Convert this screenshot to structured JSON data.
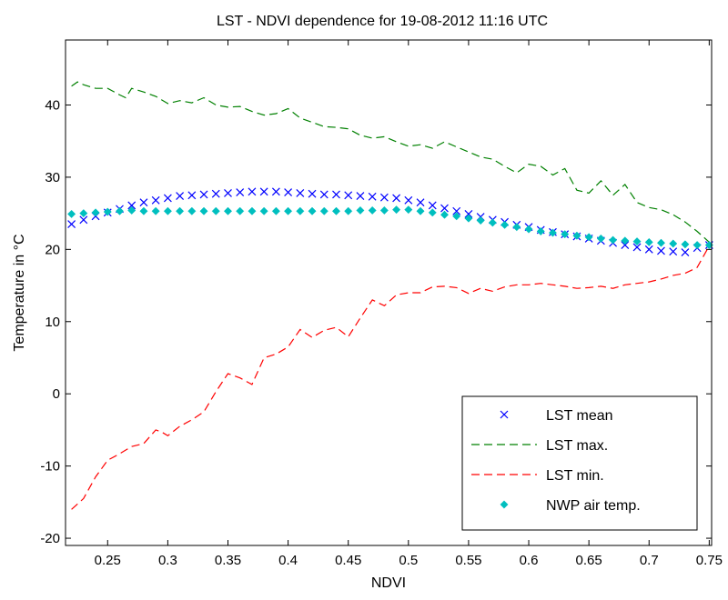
{
  "chart_data": {
    "type": "line",
    "title": "LST - NDVI dependence for 19-08-2012 11:16 UTC",
    "xlabel": "NDVI",
    "ylabel": "Temperature in °C",
    "xlim": [
      0.215,
      0.752
    ],
    "ylim": [
      -21,
      49
    ],
    "xticks": [
      0.25,
      0.3,
      0.35,
      0.4,
      0.45,
      0.5,
      0.55,
      0.6,
      0.65,
      0.7,
      0.75
    ],
    "xtick_labels": [
      "0.25",
      "0.3",
      "0.35",
      "0.4",
      "0.45",
      "0.5",
      "0.55",
      "0.6",
      "0.65",
      "0.7",
      "0.75"
    ],
    "yticks": [
      -20,
      -10,
      0,
      10,
      20,
      30,
      40
    ],
    "ytick_labels": [
      "-20",
      "-10",
      "0",
      "10",
      "20",
      "30",
      "40"
    ],
    "grid": false,
    "legend_position": "bottom-right",
    "series": [
      {
        "name": "LST mean",
        "style": "marker-x",
        "color": "#0000ff",
        "x": [
          0.22,
          0.23,
          0.24,
          0.25,
          0.26,
          0.27,
          0.28,
          0.29,
          0.3,
          0.31,
          0.32,
          0.33,
          0.34,
          0.35,
          0.36,
          0.37,
          0.38,
          0.39,
          0.4,
          0.41,
          0.42,
          0.43,
          0.44,
          0.45,
          0.46,
          0.47,
          0.48,
          0.49,
          0.5,
          0.51,
          0.52,
          0.53,
          0.54,
          0.55,
          0.56,
          0.57,
          0.58,
          0.59,
          0.6,
          0.61,
          0.62,
          0.63,
          0.64,
          0.65,
          0.66,
          0.67,
          0.68,
          0.69,
          0.7,
          0.71,
          0.72,
          0.73,
          0.74,
          0.75
        ],
        "y": [
          23.5,
          24.1,
          24.6,
          25.1,
          25.6,
          26.1,
          26.5,
          26.8,
          27.1,
          27.4,
          27.5,
          27.6,
          27.7,
          27.8,
          27.9,
          28.0,
          28.0,
          28.0,
          27.9,
          27.8,
          27.7,
          27.6,
          27.6,
          27.5,
          27.4,
          27.3,
          27.2,
          27.1,
          26.8,
          26.5,
          26.1,
          25.7,
          25.3,
          24.9,
          24.5,
          24.1,
          23.8,
          23.4,
          23.1,
          22.7,
          22.4,
          22.1,
          21.8,
          21.5,
          21.2,
          20.9,
          20.6,
          20.3,
          20.0,
          19.8,
          19.7,
          19.6,
          20.2,
          20.6
        ]
      },
      {
        "name": "LST max.",
        "style": "dashed-line",
        "color": "#008000",
        "x": [
          0.22,
          0.225,
          0.23,
          0.24,
          0.25,
          0.26,
          0.265,
          0.27,
          0.28,
          0.29,
          0.3,
          0.31,
          0.32,
          0.33,
          0.34,
          0.35,
          0.36,
          0.37,
          0.38,
          0.39,
          0.4,
          0.41,
          0.42,
          0.43,
          0.44,
          0.45,
          0.46,
          0.47,
          0.48,
          0.49,
          0.5,
          0.51,
          0.52,
          0.53,
          0.54,
          0.55,
          0.56,
          0.57,
          0.58,
          0.59,
          0.6,
          0.61,
          0.62,
          0.63,
          0.64,
          0.65,
          0.66,
          0.67,
          0.68,
          0.69,
          0.7,
          0.71,
          0.72,
          0.73,
          0.74,
          0.75
        ],
        "y": [
          42.6,
          43.2,
          42.8,
          42.3,
          42.3,
          41.4,
          41.0,
          42.3,
          41.8,
          41.2,
          40.2,
          40.6,
          40.3,
          41.0,
          40.0,
          39.7,
          39.8,
          39.1,
          38.6,
          38.8,
          39.5,
          38.2,
          37.6,
          37.0,
          36.9,
          36.7,
          35.8,
          35.4,
          35.6,
          34.9,
          34.3,
          34.5,
          34.0,
          34.9,
          34.2,
          33.5,
          32.8,
          32.5,
          31.5,
          30.6,
          31.8,
          31.5,
          30.3,
          31.2,
          28.2,
          27.8,
          29.5,
          27.5,
          29.0,
          26.5,
          25.8,
          25.5,
          24.8,
          23.8,
          22.5,
          21.0
        ]
      },
      {
        "name": "LST min.",
        "style": "dashed-line",
        "color": "#ff0000",
        "x": [
          0.22,
          0.23,
          0.24,
          0.25,
          0.26,
          0.27,
          0.28,
          0.29,
          0.295,
          0.3,
          0.31,
          0.32,
          0.33,
          0.34,
          0.35,
          0.36,
          0.37,
          0.38,
          0.39,
          0.4,
          0.41,
          0.42,
          0.43,
          0.44,
          0.45,
          0.46,
          0.47,
          0.48,
          0.49,
          0.5,
          0.51,
          0.52,
          0.53,
          0.54,
          0.55,
          0.56,
          0.57,
          0.58,
          0.59,
          0.6,
          0.61,
          0.62,
          0.63,
          0.64,
          0.65,
          0.66,
          0.67,
          0.68,
          0.69,
          0.7,
          0.71,
          0.72,
          0.73,
          0.74,
          0.75
        ],
        "y": [
          -16.0,
          -14.5,
          -11.5,
          -9.2,
          -8.3,
          -7.3,
          -6.9,
          -5.0,
          -5.3,
          -5.8,
          -4.5,
          -3.6,
          -2.5,
          0.3,
          2.8,
          2.2,
          1.3,
          5.0,
          5.5,
          6.5,
          8.9,
          7.8,
          8.8,
          9.2,
          7.9,
          10.5,
          13.0,
          12.2,
          13.7,
          14.0,
          14.0,
          14.8,
          14.9,
          14.7,
          13.9,
          14.6,
          14.2,
          14.8,
          15.1,
          15.1,
          15.3,
          15.1,
          14.9,
          14.6,
          14.7,
          14.9,
          14.6,
          15.1,
          15.3,
          15.5,
          15.9,
          16.4,
          16.7,
          17.5,
          20.5
        ]
      },
      {
        "name": "NWP air temp.",
        "style": "marker-diamond",
        "color": "#00bfbf",
        "x": [
          0.22,
          0.23,
          0.24,
          0.25,
          0.26,
          0.27,
          0.28,
          0.29,
          0.3,
          0.31,
          0.32,
          0.33,
          0.34,
          0.35,
          0.36,
          0.37,
          0.38,
          0.39,
          0.4,
          0.41,
          0.42,
          0.43,
          0.44,
          0.45,
          0.46,
          0.47,
          0.48,
          0.49,
          0.5,
          0.51,
          0.52,
          0.53,
          0.54,
          0.55,
          0.56,
          0.57,
          0.58,
          0.59,
          0.6,
          0.61,
          0.62,
          0.63,
          0.64,
          0.65,
          0.66,
          0.67,
          0.68,
          0.69,
          0.7,
          0.71,
          0.72,
          0.73,
          0.74,
          0.75
        ],
        "y": [
          24.9,
          25.0,
          25.1,
          25.2,
          25.3,
          25.4,
          25.3,
          25.3,
          25.3,
          25.3,
          25.3,
          25.3,
          25.3,
          25.3,
          25.3,
          25.3,
          25.3,
          25.3,
          25.3,
          25.3,
          25.3,
          25.3,
          25.3,
          25.3,
          25.4,
          25.4,
          25.4,
          25.5,
          25.5,
          25.3,
          25.1,
          24.8,
          24.6,
          24.3,
          24.0,
          23.7,
          23.4,
          23.1,
          22.8,
          22.5,
          22.3,
          22.1,
          21.9,
          21.7,
          21.5,
          21.3,
          21.2,
          21.1,
          21.0,
          20.9,
          20.8,
          20.7,
          20.6,
          20.6
        ]
      }
    ]
  }
}
